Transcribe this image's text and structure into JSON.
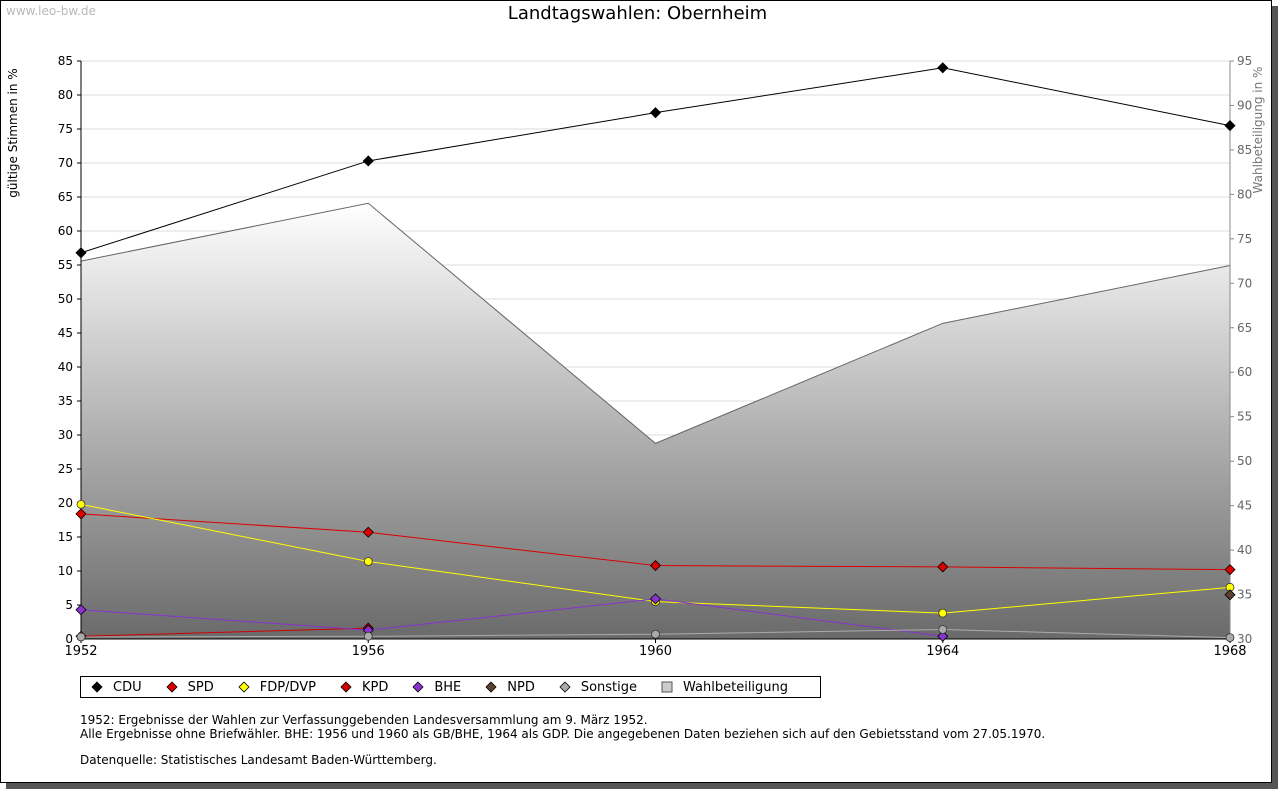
{
  "watermark": "www.leo-bw.de",
  "chart_data": {
    "type": "line",
    "title": "Landtagswahlen: Obernheim",
    "ylabel": "gültige Stimmen in %",
    "y2label": "Wahlbeteiligung in %",
    "x": [
      "1952",
      "1956",
      "1960",
      "1964",
      "1968"
    ],
    "ylim": [
      0,
      85
    ],
    "y2lim": [
      30,
      95
    ],
    "yticks": [
      "0",
      "5",
      "10",
      "15",
      "20",
      "25",
      "30",
      "35",
      "40",
      "45",
      "50",
      "55",
      "60",
      "65",
      "70",
      "75",
      "80",
      "85"
    ],
    "y2ticks": [
      "30",
      "35",
      "40",
      "45",
      "50",
      "55",
      "60",
      "65",
      "70",
      "75",
      "80",
      "85",
      "90",
      "95"
    ],
    "grid": true,
    "legend_position": "bottom",
    "series": [
      {
        "name": "CDU",
        "color": "#000000",
        "values": [
          56.8,
          70.3,
          77.4,
          84.0,
          75.5
        ]
      },
      {
        "name": "SPD",
        "color": "#dd0000",
        "values": [
          18.4,
          15.7,
          10.8,
          10.6,
          10.2
        ]
      },
      {
        "name": "FDP/DVP",
        "color": "#ffff00",
        "values": [
          19.8,
          11.4,
          5.5,
          3.8,
          7.6
        ]
      },
      {
        "name": "KPD",
        "color": "#cc0000",
        "values": [
          0.4,
          1.6,
          null,
          null,
          null
        ]
      },
      {
        "name": "BHE",
        "color": "#8833cc",
        "values": [
          4.3,
          1.3,
          5.9,
          0.4,
          null
        ]
      },
      {
        "name": "NPD",
        "color": "#5c4030",
        "values": [
          null,
          null,
          null,
          null,
          6.5
        ]
      },
      {
        "name": "Sonstige",
        "color": "#aaaaaa",
        "values": [
          0.3,
          0.4,
          0.7,
          1.4,
          0.2
        ]
      }
    ],
    "turnout": {
      "name": "Wahlbeteiligung",
      "axis": "right",
      "values": [
        72.5,
        79.0,
        52.0,
        65.5,
        72.0
      ]
    }
  },
  "notes": {
    "line1": "1952: Ergebnisse der Wahlen zur Verfassunggebenden Landesversammlung am 9. März 1952.",
    "line2": "Alle Ergebnisse ohne Briefwähler. BHE: 1956 und 1960 als GB/BHE, 1964 als GDP. Die angegebenen Daten beziehen sich auf den Gebietsstand vom 27.05.1970.",
    "source": "Datenquelle: Statistisches Landesamt Baden-Württemberg."
  }
}
